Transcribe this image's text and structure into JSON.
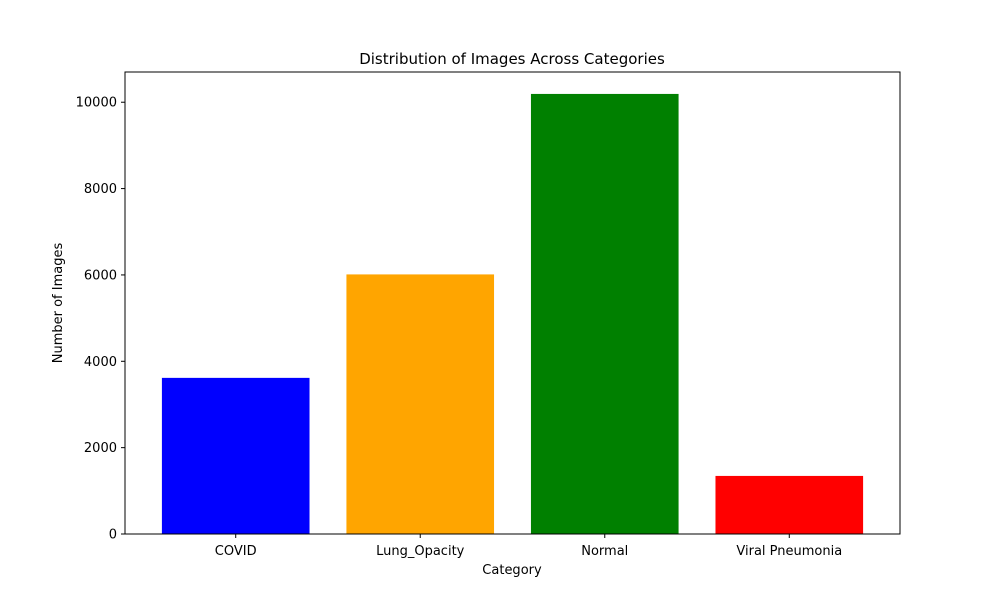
{
  "chart_data": {
    "type": "bar",
    "title": "Distribution of Images Across Categories",
    "xlabel": "Category",
    "ylabel": "Number of Images",
    "categories": [
      "COVID",
      "Lung_Opacity",
      "Normal",
      "Viral Pneumonia"
    ],
    "values": [
      3616,
      6012,
      10192,
      1345
    ],
    "colors": [
      "#0000ff",
      "#ffa500",
      "#008000",
      "#ff0000"
    ],
    "ylim": [
      0,
      10700
    ],
    "yticks": [
      0,
      2000,
      4000,
      6000,
      8000,
      10000
    ],
    "ytick_labels": [
      "0",
      "2000",
      "4000",
      "6000",
      "8000",
      "10000"
    ],
    "grid": false,
    "legend": "none"
  }
}
